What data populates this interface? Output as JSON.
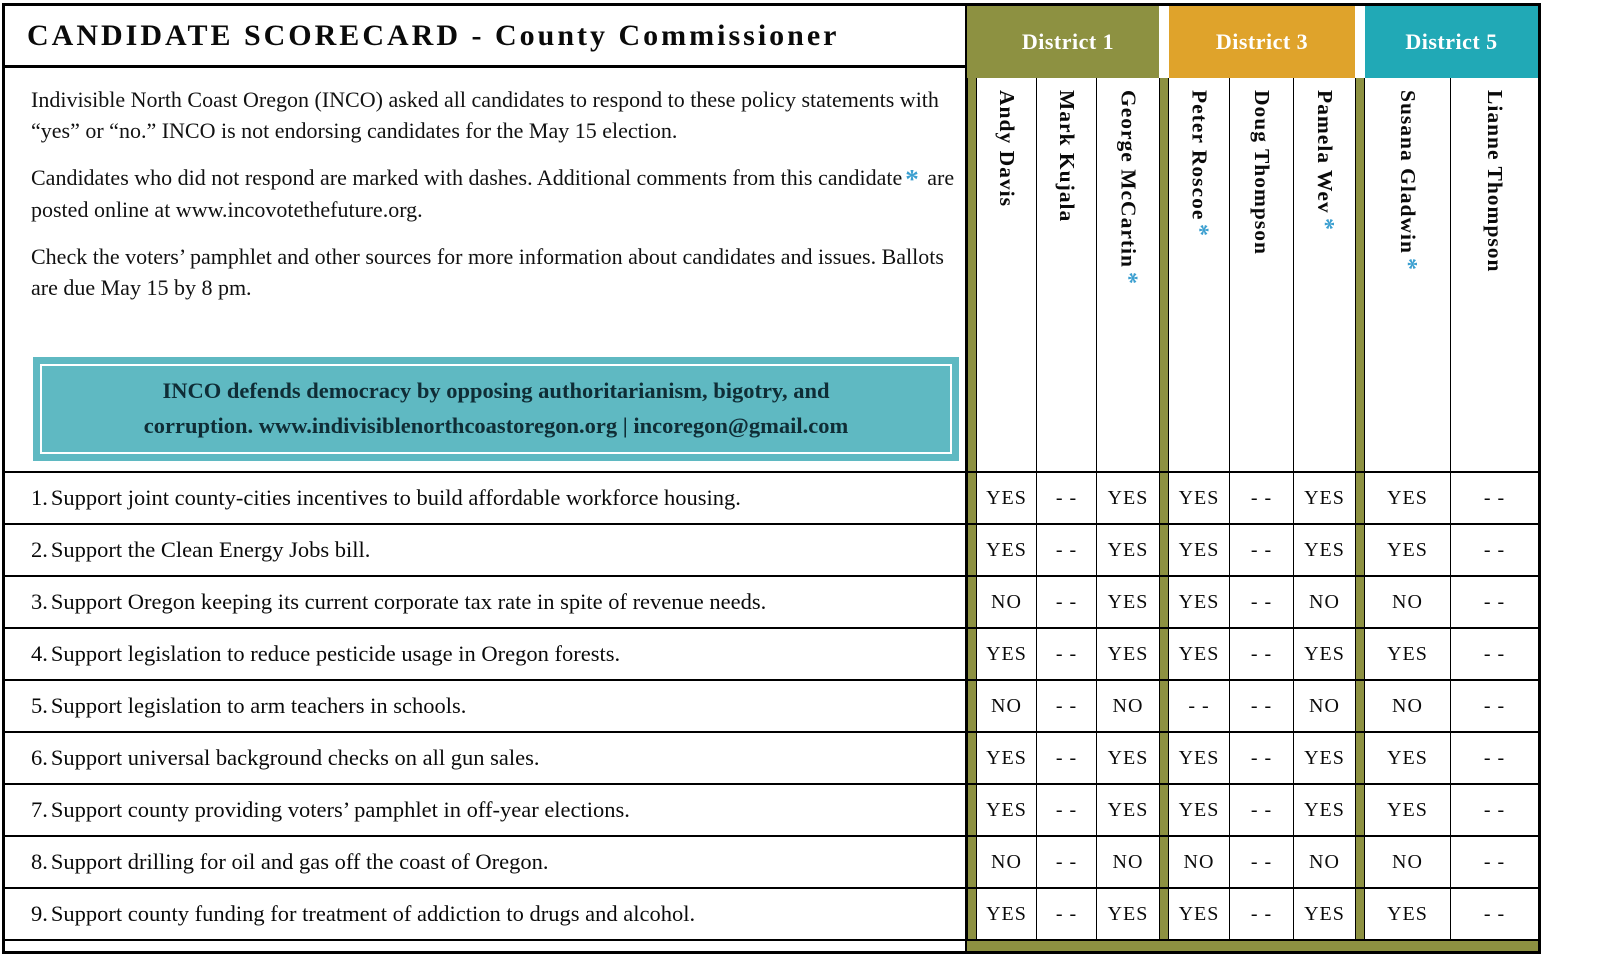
{
  "colors": {
    "district1": "#8d9141",
    "district3": "#dfa32b",
    "district5": "#21a9b6",
    "separator_bar": "#8d9141",
    "banner_background": "#5fb9c2",
    "asterisk_blue": "#3b9fd0"
  },
  "header": {
    "title": "CANDIDATE SCORECARD - County Commissioner",
    "intro1": "Indivisible North Coast Oregon (INCO) asked all candidates to respond to these policy statements with “yes” or “no.”  INCO is not endorsing candidates for the May 15 election.",
    "intro2_pre": "Candidates who did not respond are marked with dashes. Additional comments from this candidate",
    "intro2_star": "*",
    "intro2_post": " are posted online at www.incovotethefuture.org.",
    "intro3": "Check the voters’ pamphlet and other sources for more information about candidates and issues. Ballots are due May 15 by 8 pm.",
    "banner_line1": "INCO defends democracy by opposing authoritarianism, bigotry, and",
    "banner_line2": "corruption. www.indivisiblenorthcoastoregon.org | incoregon@gmail.com"
  },
  "districts": [
    {
      "label": "District 1",
      "color": "#8d9141"
    },
    {
      "label": "District 3",
      "color": "#dfa32b"
    },
    {
      "label": "District 5",
      "color": "#21a9b6"
    }
  ],
  "candidates": [
    {
      "name": "Andy Davis",
      "star": ""
    },
    {
      "name": "Mark Kujala",
      "star": ""
    },
    {
      "name": "George McCartin",
      "star": "*"
    },
    {
      "name": "Peter Roscoe",
      "star": "*"
    },
    {
      "name": "Doug Thompson",
      "star": ""
    },
    {
      "name": "Pamela Wev",
      "star": "*"
    },
    {
      "name": "Susana Gladwin",
      "star": "*"
    },
    {
      "name": "Lianne Thompson",
      "star": ""
    }
  ],
  "questions": [
    {
      "num": "1.",
      "text": "Support joint county-cities incentives to build affordable workforce housing.",
      "answers": [
        "YES",
        "- -",
        "YES",
        "YES",
        "- -",
        "YES",
        "YES",
        "- -"
      ]
    },
    {
      "num": "2.",
      "text": "Support the Clean Energy Jobs bill.",
      "answers": [
        "YES",
        "- -",
        "YES",
        "YES",
        "- -",
        "YES",
        "YES",
        "- -"
      ]
    },
    {
      "num": "3.",
      "text": "Support Oregon keeping its current corporate tax rate in spite of revenue needs.",
      "answers": [
        "NO",
        "- -",
        "YES",
        "YES",
        "- -",
        "NO",
        "NO",
        "- -"
      ]
    },
    {
      "num": "4.",
      "text": "Support legislation to reduce pesticide usage in Oregon forests.",
      "answers": [
        "YES",
        "- -",
        "YES",
        "YES",
        "- -",
        "YES",
        "YES",
        "- -"
      ]
    },
    {
      "num": "5.",
      "text": "Support legislation to arm teachers in schools.",
      "answers": [
        "NO",
        "- -",
        "NO",
        "- -",
        "- -",
        "NO",
        "NO",
        "- -"
      ]
    },
    {
      "num": "6.",
      "text": "Support universal background checks on all gun sales.",
      "answers": [
        "YES",
        "- -",
        "YES",
        "YES",
        "- -",
        "YES",
        "YES",
        "- -"
      ]
    },
    {
      "num": "7.",
      "text": "Support county providing voters’ pamphlet in off-year elections.",
      "answers": [
        "YES",
        "- -",
        "YES",
        "YES",
        "- -",
        "YES",
        "YES",
        "- -"
      ]
    },
    {
      "num": "8.",
      "text": "Support drilling for oil and gas off the coast of Oregon.",
      "answers": [
        "NO",
        "- -",
        "NO",
        "NO",
        "- -",
        "NO",
        "NO",
        "- -"
      ]
    },
    {
      "num": "9.",
      "text": "Support county funding for treatment of addiction to drugs and alcohol.",
      "answers": [
        "YES",
        "- -",
        "YES",
        "YES",
        "- -",
        "YES",
        "YES",
        "- -"
      ]
    }
  ]
}
